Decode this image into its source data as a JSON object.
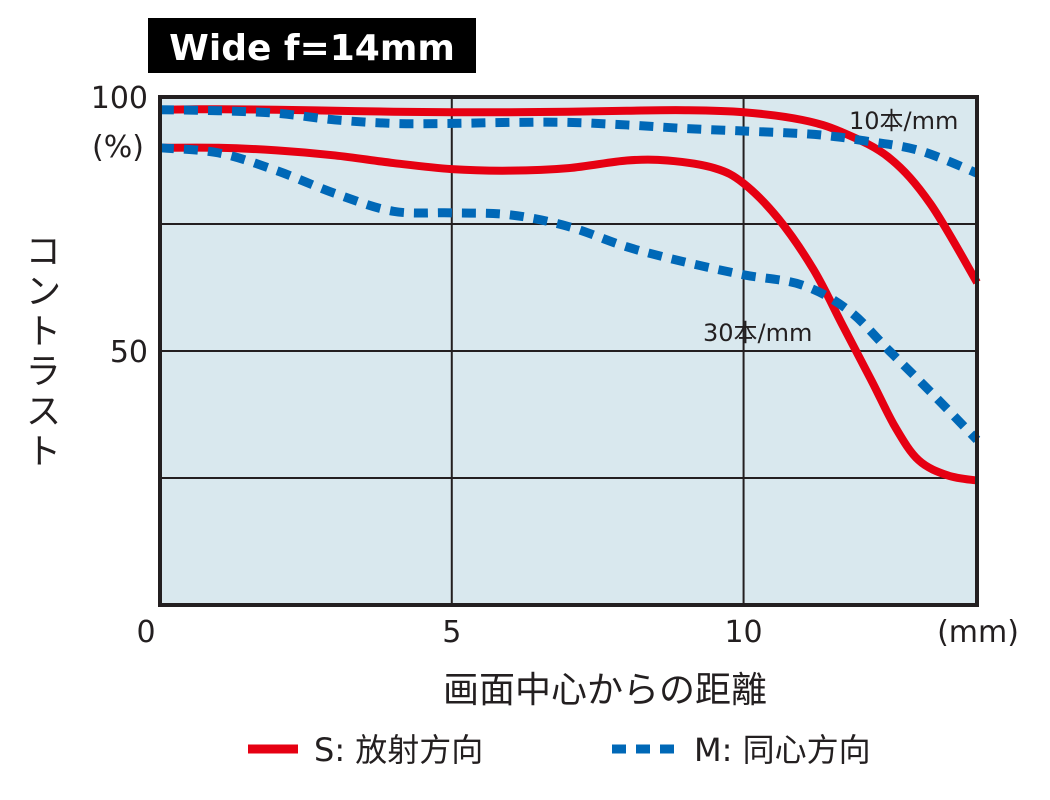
{
  "title": "Wide  f=14mm",
  "chart_data": {
    "type": "line",
    "title": "Wide  f=14mm",
    "xlabel": "画面中心からの距離",
    "x_unit": "(mm)",
    "ylabel": "コントラスト",
    "y_unit": "(%)",
    "xlim": [
      0,
      14
    ],
    "ylim": [
      0,
      100
    ],
    "xticks": [
      0,
      5,
      10
    ],
    "yticks": [
      50,
      100
    ],
    "grid": true,
    "legend_position": "bottom",
    "annotations": {
      "high_freq": "10本/mm",
      "low_freq": "30本/mm"
    },
    "colors": {
      "sagittal": "#e60012",
      "meridional": "#0068b7",
      "plot_bg": "#d9e8ee",
      "title_bg": "#000000"
    },
    "series": [
      {
        "name": "S: 放射方向",
        "frequency": "10本/mm",
        "style": "solid",
        "x": [
          0,
          1,
          2,
          3,
          4,
          5,
          6,
          7,
          8,
          9,
          10,
          11,
          11.7,
          12.5,
          13.2,
          14
        ],
        "y": [
          97.5,
          97.6,
          97.5,
          97.3,
          97.1,
          97.0,
          97.0,
          97.1,
          97.3,
          97.4,
          97.0,
          95.5,
          93.0,
          88.0,
          79.0,
          63.5
        ]
      },
      {
        "name": "M: 同心方向",
        "frequency": "10本/mm",
        "style": "dashed",
        "x": [
          0,
          1,
          2,
          3,
          4,
          5,
          6,
          7,
          8,
          9,
          10,
          11,
          11.5,
          12,
          13,
          14
        ],
        "y": [
          97.5,
          97.3,
          96.8,
          95.5,
          94.8,
          94.8,
          95.0,
          95.0,
          94.5,
          93.8,
          93.3,
          92.8,
          92.3,
          91.5,
          89.5,
          85.0
        ]
      },
      {
        "name": "S: 放射方向",
        "frequency": "30本/mm",
        "style": "solid",
        "x": [
          0,
          1,
          2,
          3,
          4,
          5,
          6,
          7,
          8,
          8.7,
          9.5,
          10,
          10.6,
          11.2,
          11.7,
          12.2,
          12.6,
          13.0,
          13.5,
          14
        ],
        "y": [
          90.0,
          90.0,
          89.5,
          88.5,
          87.0,
          85.8,
          85.5,
          86.0,
          87.5,
          87.5,
          86.0,
          83.0,
          76.0,
          66.0,
          55.0,
          44.0,
          35.0,
          28.5,
          25.5,
          24.5
        ]
      },
      {
        "name": "M: 同心方向",
        "frequency": "30本/mm",
        "style": "dashed",
        "x": [
          0,
          1,
          2,
          3,
          4,
          5,
          6,
          7,
          8,
          9,
          10,
          11,
          11.8,
          12.5,
          13.2,
          14
        ],
        "y": [
          90.0,
          89.0,
          85.5,
          81.0,
          77.5,
          77.2,
          76.8,
          74.5,
          70.5,
          67.5,
          65.0,
          63.0,
          58.0,
          50.0,
          42.0,
          32.5
        ]
      }
    ],
    "legend": [
      {
        "label": "S: 放射方向",
        "style": "solid"
      },
      {
        "label": "M: 同心方向",
        "style": "dashed"
      }
    ]
  }
}
